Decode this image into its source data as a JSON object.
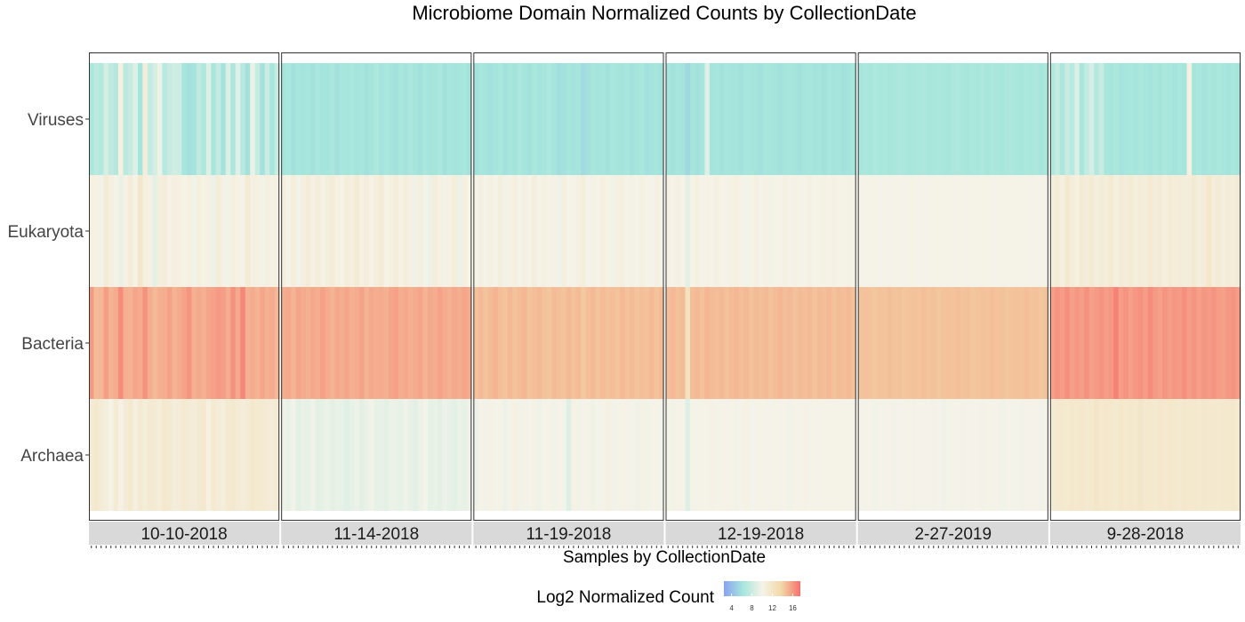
{
  "chart_data": {
    "type": "heatmap",
    "title": "Microbiome Domain Normalized Counts by CollectionDate",
    "xlabel": "Samples by CollectionDate",
    "ylabel": "",
    "rows": [
      "Viruses",
      "Eukaryota",
      "Bacteria",
      "Archaea"
    ],
    "facets": [
      {
        "label": "10-10-2018",
        "values": {
          "Viruses": [
            6.5,
            7.2,
            6.8,
            8.5,
            7.5,
            6.9,
            10.5,
            7.2,
            7.8,
            8.9,
            6.2,
            10.8,
            7.6,
            8.5,
            9.6,
            7.0,
            7.8,
            8.2,
            8.1,
            6.3,
            5.9,
            6.1,
            7.5,
            6.6,
            8.9,
            6.4,
            7.7,
            6.1,
            8.8,
            6.5,
            9.0,
            7.1,
            6.0,
            9.5,
            7.8,
            5.9,
            8.0,
            6.3,
            7.8
          ],
          "Eukaryota": [
            10.5,
            10.4,
            9.8,
            11.1,
            10.6,
            10.2,
            9.5,
            10.3,
            11.0,
            10.2,
            11.8,
            10.6,
            10.4,
            9.2,
            10.7,
            10.8,
            10.3,
            10.6,
            10.4,
            10.2,
            10.5,
            9.8,
            10.6,
            10.2,
            10.4,
            9.6,
            10.9,
            10.3,
            9.8,
            10.6,
            10.3,
            10.1,
            11.2,
            10.4,
            10.5,
            9.8,
            10.6,
            10.3,
            10.4
          ],
          "Bacteria": [
            16.0,
            14.8,
            15.0,
            15.9,
            15.1,
            15.4,
            16.5,
            15.2,
            15.1,
            15.6,
            15.4,
            16.3,
            15.3,
            14.9,
            15.2,
            15.3,
            15.8,
            15.1,
            15.4,
            15.7,
            16.2,
            15.2,
            15.5,
            15.2,
            15.6,
            15.7,
            16.0,
            15.9,
            15.3,
            16.3,
            15.5,
            16.7,
            15.2,
            15.4,
            15.1,
            15.6,
            15.2,
            15.4,
            15.0
          ],
          "Archaea": [
            11.1,
            11.6,
            11.0,
            10.7,
            10.2,
            11.2,
            10.3,
            11.0,
            11.5,
            10.6,
            11.3,
            10.9,
            11.4,
            11.2,
            10.9,
            11.6,
            11.4,
            10.8,
            11.0,
            11.3,
            11.1,
            11.0,
            11.4,
            11.5,
            10.5,
            11.4,
            11.0,
            10.7,
            11.3,
            11.5,
            11.1,
            10.9,
            11.2,
            11.7,
            11.3,
            11.4,
            11.2,
            11.0,
            11.3
          ]
        }
      },
      {
        "label": "11-14-2018",
        "values": {
          "Viruses": [
            6.2,
            6.4,
            6.0,
            6.3,
            6.1,
            6.3,
            6.0,
            6.4,
            6.1,
            6.2,
            6.5,
            6.0,
            6.3,
            6.2,
            6.4,
            6.1,
            6.3,
            6.0,
            6.2,
            6.6,
            6.1,
            6.4,
            6.2,
            6.0,
            6.3,
            6.1,
            6.5,
            6.2,
            6.0,
            6.4,
            6.1,
            6.2,
            6.5,
            6.0,
            6.3,
            6.1,
            6.2,
            6.4,
            6.0
          ],
          "Eukaryota": [
            10.6,
            10.2,
            10.8,
            9.8,
            10.6,
            11.0,
            10.4,
            10.8,
            10.3,
            10.7,
            11.0,
            10.5,
            10.2,
            10.9,
            10.6,
            11.2,
            10.4,
            10.8,
            10.3,
            10.7,
            11.1,
            10.2,
            10.5,
            10.9,
            10.3,
            10.7,
            10.4,
            9.7,
            10.6,
            10.2,
            9.6,
            10.8,
            10.5,
            9.8,
            10.4,
            10.9,
            9.5,
            10.6,
            10.2
          ],
          "Bacteria": [
            15.3,
            15.5,
            15.1,
            15.6,
            15.4,
            15.2,
            15.5,
            15.3,
            15.8,
            15.4,
            15.1,
            15.5,
            15.3,
            15.6,
            15.2,
            15.4,
            15.7,
            15.1,
            15.5,
            15.3,
            15.4,
            15.2,
            15.6,
            15.8,
            15.3,
            15.5,
            15.2,
            15.4,
            15.6,
            15.1,
            15.5,
            15.3,
            15.7,
            15.4,
            15.2,
            15.5,
            15.3,
            15.6,
            15.4
          ],
          "Archaea": [
            9.6,
            9.4,
            9.8,
            9.2,
            9.5,
            9.3,
            9.7,
            9.1,
            9.4,
            9.6,
            9.2,
            9.5,
            9.3,
            9.0,
            9.4,
            9.6,
            9.2,
            9.5,
            9.8,
            9.3,
            9.4,
            9.1,
            9.6,
            9.5,
            9.3,
            9.7,
            9.4,
            9.2,
            9.6,
            9.9,
            9.3,
            9.5,
            9.2,
            9.6,
            9.4,
            9.1,
            9.5,
            9.3,
            9.6
          ]
        }
      },
      {
        "label": "11-19-2018",
        "values": {
          "Viruses": [
            6.0,
            6.3,
            6.1,
            5.9,
            6.2,
            6.4,
            6.0,
            6.3,
            6.1,
            6.5,
            6.2,
            6.0,
            6.4,
            6.1,
            6.3,
            6.6,
            6.2,
            5.8,
            6.0,
            6.3,
            6.1,
            6.2,
            5.6,
            6.0,
            6.3,
            6.1,
            6.2,
            6.0,
            6.4,
            6.2,
            6.1,
            6.3,
            6.0,
            6.2,
            6.4,
            5.9,
            6.1,
            6.2,
            6.0
          ],
          "Eukaryota": [
            10.2,
            10.6,
            9.9,
            10.4,
            10.1,
            10.7,
            9.8,
            10.3,
            10.6,
            10.0,
            10.4,
            10.2,
            10.8,
            9.9,
            10.5,
            10.1,
            10.3,
            9.7,
            10.6,
            10.2,
            10.0,
            10.4,
            10.7,
            9.9,
            10.3,
            10.1,
            10.5,
            10.2,
            9.8,
            10.4,
            10.6,
            10.0,
            10.3,
            10.1,
            10.5,
            10.2,
            9.9,
            10.4,
            10.1
          ],
          "Bacteria": [
            14.6,
            14.9,
            14.5,
            14.8,
            15.1,
            14.7,
            14.5,
            14.9,
            14.6,
            14.8,
            15.0,
            14.5,
            14.7,
            14.9,
            14.6,
            14.4,
            14.8,
            14.7,
            14.5,
            14.9,
            14.6,
            14.8,
            14.3,
            14.7,
            14.9,
            14.5,
            14.8,
            14.6,
            14.7,
            14.5,
            14.9,
            14.6,
            14.8,
            14.5,
            14.7,
            14.6,
            14.9,
            14.5,
            14.8
          ],
          "Archaea": [
            9.7,
            10.1,
            9.8,
            10.3,
            9.9,
            10.2,
            9.6,
            10.0,
            10.4,
            9.8,
            10.1,
            9.9,
            10.3,
            9.7,
            10.0,
            10.2,
            9.8,
            10.1,
            9.9,
            8.9,
            10.3,
            9.8,
            10.0,
            10.2,
            9.7,
            10.1,
            9.9,
            10.4,
            9.8,
            10.0,
            10.2,
            9.9,
            10.1,
            9.7,
            10.3,
            9.8,
            10.0,
            10.2,
            9.9
          ]
        }
      },
      {
        "label": "12-19-2018",
        "values": {
          "Viruses": [
            6.2,
            6.0,
            6.3,
            6.1,
            5.4,
            6.2,
            6.0,
            6.3,
            8.9,
            6.1,
            6.2,
            6.0,
            6.3,
            6.1,
            6.2,
            6.0,
            6.3,
            6.2,
            6.1,
            6.0,
            6.3,
            6.2,
            6.1,
            6.0,
            6.2,
            6.3,
            6.1,
            6.0,
            6.2,
            6.3,
            6.1,
            6.2,
            6.0,
            6.3,
            6.1,
            6.2,
            6.0,
            6.1,
            6.3
          ],
          "Eukaryota": [
            10.3,
            10.0,
            10.4,
            10.1,
            9.2,
            10.2,
            10.5,
            10.0,
            10.3,
            10.1,
            10.4,
            10.2,
            10.0,
            10.3,
            10.5,
            10.1,
            9.9,
            10.2,
            10.4,
            10.0,
            10.3,
            9.8,
            10.2,
            10.1,
            10.4,
            10.0,
            10.3,
            10.2,
            10.1,
            10.4,
            10.0,
            10.2,
            10.3,
            10.1,
            10.4,
            10.0,
            10.2,
            10.3,
            10.1
          ],
          "Bacteria": [
            14.7,
            14.9,
            14.6,
            14.8,
            12.5,
            14.7,
            14.9,
            14.6,
            15.0,
            14.8,
            14.7,
            14.9,
            14.6,
            14.8,
            15.0,
            14.7,
            14.9,
            14.6,
            14.8,
            14.7,
            14.9,
            14.6,
            14.8,
            15.0,
            14.7,
            14.9,
            14.6,
            14.8,
            14.7,
            14.9,
            14.6,
            14.8,
            14.7,
            14.9,
            14.6,
            14.8,
            14.7,
            14.9,
            14.6
          ],
          "Archaea": [
            10.1,
            9.8,
            10.2,
            10.0,
            8.9,
            10.1,
            9.9,
            10.2,
            10.0,
            10.3,
            9.9,
            10.1,
            10.0,
            10.2,
            9.8,
            10.1,
            10.3,
            9.9,
            10.0,
            10.2,
            10.1,
            9.9,
            10.2,
            10.0,
            10.1,
            9.8,
            10.2,
            10.0,
            10.3,
            9.9,
            10.1,
            10.0,
            10.2,
            9.9,
            10.1,
            10.0,
            10.2,
            9.9,
            10.1
          ]
        }
      },
      {
        "label": "2-27-2019",
        "values": {
          "Viruses": [
            6.4,
            6.5,
            6.3,
            6.6,
            6.4,
            6.5,
            6.3,
            6.4,
            6.6,
            6.5,
            6.3,
            6.4,
            6.5,
            6.6,
            6.3,
            6.4,
            6.5,
            6.4,
            6.3,
            6.5,
            6.6,
            6.4,
            6.3,
            6.5,
            6.4,
            6.6,
            6.3,
            6.5,
            6.4,
            6.3,
            6.5,
            6.6,
            6.4,
            6.3,
            6.5,
            6.4,
            6.6,
            6.3,
            6.5
          ],
          "Eukaryota": [
            10.1,
            10.0,
            10.1,
            10.2,
            10.0,
            10.1,
            10.0,
            10.2,
            10.1,
            10.0,
            10.1,
            10.2,
            10.0,
            10.1,
            10.0,
            10.1,
            10.2,
            10.0,
            10.1,
            10.0,
            10.2,
            10.1,
            10.0,
            10.1,
            10.0,
            10.2,
            10.1,
            10.0,
            10.1,
            10.2,
            10.0,
            10.1,
            10.0,
            10.1,
            10.2,
            10.0,
            10.1,
            10.0,
            10.1
          ],
          "Bacteria": [
            14.5,
            14.6,
            14.5,
            14.4,
            14.6,
            14.5,
            14.7,
            14.5,
            14.6,
            14.4,
            14.5,
            14.6,
            14.5,
            14.7,
            14.5,
            14.6,
            14.4,
            14.5,
            14.6,
            14.5,
            14.7,
            14.5,
            14.6,
            14.4,
            14.5,
            14.6,
            14.5,
            14.7,
            14.5,
            14.6,
            14.4,
            14.5,
            14.6,
            14.5,
            14.7,
            14.5,
            14.6,
            14.4,
            14.5
          ],
          "Archaea": [
            10.0,
            9.9,
            10.1,
            9.8,
            10.0,
            9.9,
            10.1,
            9.8,
            10.0,
            9.9,
            10.2,
            9.8,
            10.0,
            9.9,
            10.1,
            9.8,
            10.0,
            9.7,
            10.1,
            9.9,
            10.0,
            9.8,
            10.1,
            9.9,
            10.0,
            9.8,
            10.2,
            9.9,
            10.0,
            9.8,
            10.1,
            9.9,
            10.0,
            9.8,
            10.1,
            9.9,
            10.0,
            9.8,
            10.1
          ]
        }
      },
      {
        "label": "9-28-2018",
        "values": {
          "Viruses": [
            6.8,
            7.6,
            6.5,
            7.9,
            7.0,
            8.8,
            6.4,
            7.6,
            8.5,
            6.9,
            7.8,
            6.4,
            6.2,
            6.5,
            6.1,
            6.3,
            6.4,
            6.2,
            6.5,
            6.3,
            6.1,
            6.4,
            6.2,
            6.5,
            6.3,
            6.1,
            6.4,
            6.2,
            10.4,
            6.3,
            6.5,
            6.1,
            6.4,
            6.2,
            6.5,
            6.3,
            6.1,
            6.4,
            6.2
          ],
          "Eukaryota": [
            10.8,
            11.1,
            10.6,
            11.3,
            10.9,
            10.5,
            11.2,
            10.8,
            11.4,
            10.7,
            11.0,
            10.9,
            11.3,
            10.6,
            11.1,
            10.8,
            11.2,
            10.7,
            11.0,
            10.9,
            11.3,
            10.8,
            11.1,
            10.6,
            11.2,
            10.9,
            11.0,
            10.8,
            10.9,
            11.3,
            10.7,
            11.0,
            11.8,
            10.9,
            11.1,
            10.7,
            11.0,
            10.8,
            11.2
          ],
          "Bacteria": [
            15.8,
            16.2,
            15.9,
            16.4,
            15.8,
            16.1,
            15.9,
            16.3,
            15.8,
            16.0,
            16.2,
            15.9,
            16.1,
            16.9,
            15.9,
            16.2,
            15.8,
            16.1,
            16.3,
            15.9,
            16.5,
            16.0,
            15.8,
            16.2,
            15.9,
            16.1,
            16.0,
            16.4,
            15.9,
            16.2,
            15.8,
            16.1,
            16.0,
            16.2,
            15.9,
            15.8,
            16.1,
            16.2,
            15.9
          ],
          "Archaea": [
            11.2,
            11.4,
            11.6,
            11.3,
            11.8,
            11.5,
            11.7,
            11.4,
            11.6,
            11.9,
            11.5,
            11.7,
            11.6,
            11.4,
            11.8,
            11.5,
            11.7,
            11.6,
            11.9,
            11.5,
            11.6,
            11.4,
            11.7,
            11.5,
            11.8,
            11.6,
            11.4,
            11.7,
            11.5,
            11.6,
            11.3,
            11.7,
            11.5,
            11.6,
            11.4,
            11.6,
            11.5,
            11.7,
            11.4
          ]
        }
      }
    ],
    "legend": {
      "title": "Log2 Normalized Count",
      "position": "bottom",
      "ticks": [
        4,
        8,
        12,
        16
      ],
      "range": [
        2.5,
        17.5
      ],
      "colors": [
        "#8aa2f2",
        "#a6e6dc",
        "#f5f3e9",
        "#f2d9a8",
        "#f7706c"
      ]
    },
    "grid": false
  }
}
